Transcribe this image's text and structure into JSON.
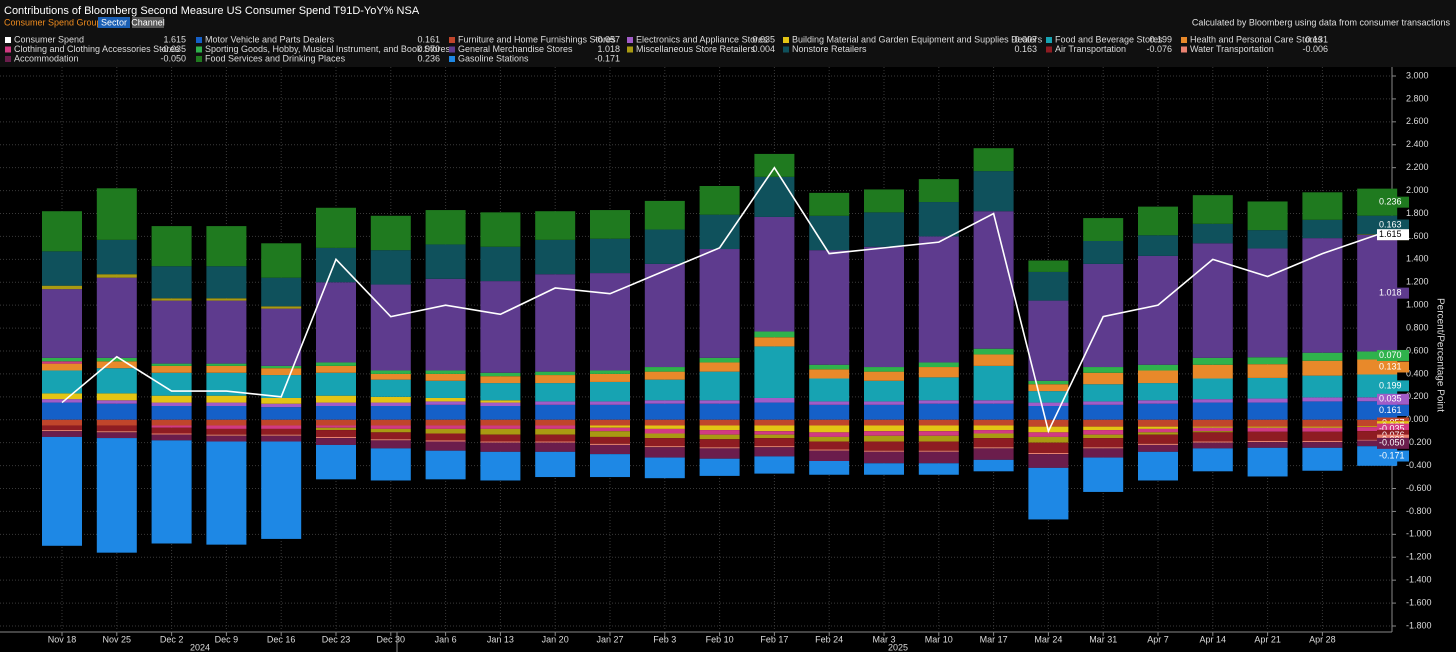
{
  "chart_data": {
    "type": "bar",
    "stacked": true,
    "title": "Contributions of Bloomberg Second Measure US Consumer Spend T91D-YoY% NSA",
    "group_label": "Consumer Spend Group by",
    "group_options": [
      "Sector",
      "Channel"
    ],
    "note": "Calculated by Bloomberg using data from consumer transactions",
    "y_label": "Percent/Percentage Point",
    "years": [
      "2024",
      "2025"
    ],
    "categories": [
      "Nov 18",
      "Nov 25",
      "Dec 2",
      "Dec 9",
      "Dec 16",
      "Dec 23",
      "Dec 30",
      "Jan 6",
      "Jan 13",
      "Jan 20",
      "Jan 27",
      "Feb 3",
      "Feb 10",
      "Feb 17",
      "Feb 24",
      "Mar 3",
      "Mar 10",
      "Mar 17",
      "Mar 24",
      "Mar 31",
      "Apr 7",
      "Apr 14",
      "Apr 21",
      "Apr 28",
      null
    ],
    "ylim": [
      -1.8,
      3.0
    ],
    "yticks": [
      {
        "value": 3.0,
        "label": "3.000"
      },
      {
        "value": 2.8,
        "label": "2.800"
      },
      {
        "value": 2.6,
        "label": "2.600"
      },
      {
        "value": 2.4,
        "label": "2.400"
      },
      {
        "value": 2.2,
        "label": "2.200"
      },
      {
        "value": 2.0,
        "label": "2.000"
      },
      {
        "value": 1.8,
        "label": "1.800"
      },
      {
        "value": 1.6,
        "label": "1.600"
      },
      {
        "value": 1.4,
        "label": "1.400"
      },
      {
        "value": 1.2,
        "label": "1.200"
      },
      {
        "value": 1.0,
        "label": "1.000"
      },
      {
        "value": 0.8,
        "label": "0.800"
      },
      {
        "value": 0.6,
        "label": "0.600"
      },
      {
        "value": 0.4,
        "label": "0.400"
      },
      {
        "value": 0.2,
        "label": "0.200"
      },
      {
        "value": 0,
        "label": "0.000"
      },
      {
        "value": -0.2,
        "label": "-0.200"
      },
      {
        "value": -0.4,
        "label": "-0.400"
      },
      {
        "value": -0.6,
        "label": "-0.600"
      },
      {
        "value": -0.8,
        "label": "-0.800"
      },
      {
        "value": -1.0,
        "label": "-1.000"
      },
      {
        "value": -1.2,
        "label": "-1.200"
      },
      {
        "value": -1.4,
        "label": "-1.400"
      },
      {
        "value": -1.6,
        "label": "-1.600"
      },
      {
        "value": -1.8,
        "label": "-1.800"
      }
    ],
    "grid": true,
    "series": [
      {
        "name": "Consumer Spend",
        "type": "line",
        "color": "#ffffff",
        "legend_value": "1.615",
        "values": [
          0.15,
          0.55,
          0.25,
          0.25,
          0.2,
          1.4,
          0.9,
          1.0,
          0.92,
          1.15,
          1.1,
          1.3,
          1.5,
          2.2,
          1.45,
          1.5,
          1.55,
          1.8,
          -0.1,
          0.9,
          1.0,
          1.4,
          1.25,
          1.45,
          1.615
        ]
      },
      {
        "name": "Motor Vehicle and Parts Dealers",
        "type": "bar",
        "color": "#1560c8",
        "legend_value": "0.161",
        "values": [
          0.15,
          0.14,
          0.12,
          0.12,
          0.11,
          0.12,
          0.12,
          0.13,
          0.12,
          0.13,
          0.13,
          0.14,
          0.14,
          0.15,
          0.13,
          0.13,
          0.14,
          0.14,
          0.12,
          0.13,
          0.14,
          0.15,
          0.15,
          0.16,
          0.161
        ]
      },
      {
        "name": "Furniture and Home Furnishings Stores",
        "type": "bar",
        "color": "#c0452b",
        "legend_value": "-0.057",
        "values": [
          -0.05,
          -0.05,
          -0.05,
          -0.05,
          -0.05,
          -0.05,
          -0.05,
          -0.05,
          -0.05,
          -0.05,
          -0.05,
          -0.05,
          -0.05,
          -0.05,
          -0.05,
          -0.05,
          -0.05,
          -0.05,
          -0.06,
          -0.06,
          -0.06,
          -0.06,
          -0.06,
          -0.06,
          -0.057
        ]
      },
      {
        "name": "Electronics and Appliance Stores",
        "type": "bar",
        "color": "#a15cc8",
        "legend_value": "0.035",
        "values": [
          0.03,
          0.03,
          0.03,
          0.03,
          0.03,
          0.03,
          0.03,
          0.03,
          0.03,
          0.03,
          0.03,
          0.03,
          0.03,
          0.04,
          0.03,
          0.03,
          0.03,
          0.03,
          0.03,
          0.03,
          0.03,
          0.03,
          0.035,
          0.035,
          0.035
        ]
      },
      {
        "name": "Building Material and Garden Equipment and Supplies Dealers",
        "type": "bar",
        "color": "#e3c414",
        "legend_value": "-0.007",
        "values": [
          0.05,
          0.06,
          0.06,
          0.06,
          0.05,
          0.06,
          0.05,
          0.03,
          0.02,
          0.0,
          -0.02,
          -0.03,
          -0.04,
          -0.05,
          -0.06,
          -0.05,
          -0.05,
          -0.04,
          -0.05,
          -0.03,
          -0.02,
          -0.01,
          -0.01,
          -0.01,
          -0.007
        ]
      },
      {
        "name": "Food and Beverage Stores",
        "type": "bar",
        "color": "#17a3b2",
        "legend_value": "0.199",
        "values": [
          0.2,
          0.22,
          0.2,
          0.2,
          0.2,
          0.2,
          0.15,
          0.15,
          0.15,
          0.16,
          0.17,
          0.18,
          0.25,
          0.45,
          0.2,
          0.18,
          0.2,
          0.3,
          0.1,
          0.15,
          0.15,
          0.18,
          0.18,
          0.19,
          0.199
        ]
      },
      {
        "name": "Health and Personal Care Stores",
        "type": "bar",
        "color": "#e8892a",
        "legend_value": "0.131",
        "values": [
          0.06,
          0.06,
          0.06,
          0.06,
          0.06,
          0.06,
          0.05,
          0.06,
          0.06,
          0.07,
          0.07,
          0.07,
          0.08,
          0.08,
          0.08,
          0.08,
          0.09,
          0.1,
          0.06,
          0.1,
          0.11,
          0.12,
          0.12,
          0.13,
          0.131
        ]
      },
      {
        "name": "Clothing and Clothing Accessories Stores",
        "type": "bar",
        "color": "#d13a82",
        "legend_value": "-0.035",
        "values": [
          0.02,
          0.0,
          -0.02,
          -0.03,
          -0.03,
          -0.02,
          -0.03,
          -0.03,
          -0.03,
          -0.03,
          -0.03,
          -0.04,
          -0.04,
          -0.03,
          -0.04,
          -0.04,
          -0.04,
          -0.03,
          -0.04,
          -0.04,
          -0.03,
          -0.03,
          -0.035,
          -0.035,
          -0.035
        ]
      },
      {
        "name": "Sporting Goods, Hobby, Musical Instrument, and Book Stores",
        "type": "bar",
        "color": "#2fb24c",
        "legend_value": "0.070",
        "values": [
          0.03,
          0.03,
          0.02,
          0.02,
          0.02,
          0.03,
          0.03,
          0.03,
          0.03,
          0.03,
          0.03,
          0.04,
          0.04,
          0.05,
          0.04,
          0.04,
          0.04,
          0.05,
          0.03,
          0.05,
          0.05,
          0.06,
          0.06,
          0.07,
          0.07
        ]
      },
      {
        "name": "General Merchandise Stores",
        "type": "bar",
        "color": "#5e3b8e",
        "legend_value": "1.018",
        "values": [
          0.6,
          0.7,
          0.55,
          0.55,
          0.5,
          0.7,
          0.75,
          0.8,
          0.8,
          0.85,
          0.85,
          0.9,
          0.95,
          1.0,
          1.0,
          1.05,
          1.1,
          1.2,
          0.7,
          0.9,
          0.95,
          1.0,
          0.95,
          1.0,
          1.018
        ]
      },
      {
        "name": "Miscellaneous Store Retailers",
        "type": "bar",
        "color": "#a99a12",
        "legend_value": "0.004",
        "values": [
          0.03,
          0.03,
          0.02,
          0.02,
          0.02,
          -0.02,
          -0.03,
          -0.04,
          -0.05,
          -0.05,
          -0.05,
          -0.04,
          -0.04,
          -0.03,
          -0.04,
          -0.05,
          -0.05,
          -0.04,
          -0.05,
          -0.03,
          -0.02,
          -0.01,
          0.0,
          0.0,
          0.004
        ]
      },
      {
        "name": "Nonstore Retailers",
        "type": "bar",
        "color": "#0f515c",
        "legend_value": "0.163",
        "values": [
          0.3,
          0.3,
          0.28,
          0.28,
          0.25,
          0.3,
          0.3,
          0.3,
          0.3,
          0.3,
          0.3,
          0.3,
          0.3,
          0.35,
          0.3,
          0.3,
          0.3,
          0.35,
          0.25,
          0.2,
          0.18,
          0.17,
          0.16,
          0.16,
          0.163
        ]
      },
      {
        "name": "Air Transportation",
        "type": "bar",
        "color": "#8e1c22",
        "legend_value": "-0.076",
        "values": [
          -0.04,
          -0.05,
          -0.05,
          -0.05,
          -0.05,
          -0.06,
          -0.06,
          -0.06,
          -0.06,
          -0.06,
          -0.06,
          -0.07,
          -0.07,
          -0.07,
          -0.07,
          -0.08,
          -0.08,
          -0.08,
          -0.09,
          -0.08,
          -0.08,
          -0.08,
          -0.08,
          -0.08,
          -0.076
        ]
      },
      {
        "name": "Water Transportation",
        "type": "bar",
        "color": "#ea8270",
        "legend_value": "-0.006",
        "values": [
          -0.01,
          -0.01,
          -0.01,
          -0.01,
          -0.01,
          -0.01,
          -0.01,
          -0.01,
          -0.01,
          -0.01,
          -0.01,
          -0.01,
          -0.01,
          -0.01,
          -0.01,
          -0.01,
          -0.01,
          -0.01,
          -0.01,
          -0.01,
          -0.01,
          -0.01,
          -0.01,
          -0.01,
          -0.006
        ]
      },
      {
        "name": "Accommodation",
        "type": "bar",
        "color": "#6b1d4c",
        "legend_value": "-0.050",
        "values": [
          -0.05,
          -0.05,
          -0.05,
          -0.05,
          -0.05,
          -0.06,
          -0.07,
          -0.08,
          -0.08,
          -0.08,
          -0.08,
          -0.09,
          -0.09,
          -0.08,
          -0.09,
          -0.1,
          -0.1,
          -0.1,
          -0.12,
          -0.08,
          -0.06,
          -0.05,
          -0.05,
          -0.05,
          -0.05
        ]
      },
      {
        "name": "Food Services and Drinking Places",
        "type": "bar",
        "color": "#1f7a1f",
        "legend_value": "0.236",
        "values": [
          0.35,
          0.45,
          0.35,
          0.35,
          0.3,
          0.35,
          0.3,
          0.3,
          0.3,
          0.25,
          0.25,
          0.25,
          0.25,
          0.2,
          0.2,
          0.2,
          0.2,
          0.2,
          0.1,
          0.2,
          0.25,
          0.25,
          0.25,
          0.24,
          0.236
        ]
      },
      {
        "name": "Gasoline Stations",
        "type": "bar",
        "color": "#1e88e5",
        "legend_value": "-0.171",
        "values": [
          -0.95,
          -1.0,
          -0.9,
          -0.9,
          -0.85,
          -0.3,
          -0.28,
          -0.25,
          -0.25,
          -0.22,
          -0.2,
          -0.18,
          -0.15,
          -0.15,
          -0.12,
          -0.1,
          -0.1,
          -0.1,
          -0.45,
          -0.3,
          -0.25,
          -0.2,
          -0.25,
          -0.2,
          -0.171
        ]
      }
    ]
  }
}
